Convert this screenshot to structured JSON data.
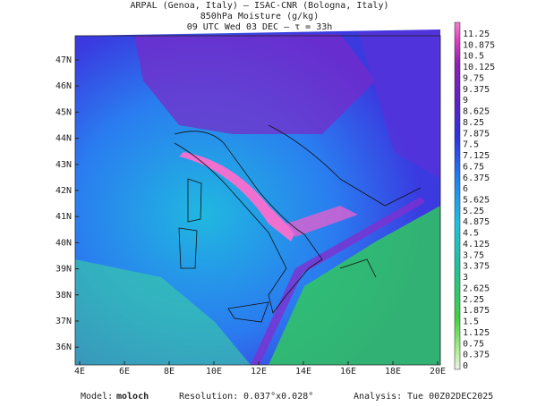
{
  "header": {
    "line1": "ARPAL (Genoa, Italy)  –  ISAC-CNR (Bologna, Italy)",
    "line2": "850hPa Moisture (g/kg)",
    "line3": "09 UTC Wed 03 DEC  –  τ = 33h"
  },
  "map": {
    "lat_labels": [
      "47N",
      "46N",
      "45N",
      "44N",
      "43N",
      "42N",
      "41N",
      "40N",
      "39N",
      "38N",
      "37N",
      "36N"
    ],
    "lon_labels": [
      "4E",
      "6E",
      "8E",
      "10E",
      "12E",
      "14E",
      "16E",
      "18E",
      "20E"
    ]
  },
  "colorbar": {
    "labels": [
      "11.25",
      "10.875",
      "10.5",
      "10.125",
      "9.75",
      "9.375",
      "9",
      "8.625",
      "8.25",
      "7.875",
      "7.5",
      "7.125",
      "6.75",
      "6.375",
      "6",
      "5.625",
      "5.25",
      "4.875",
      "4.5",
      "4.125",
      "3.75",
      "3.375",
      "3",
      "2.625",
      "2.25",
      "1.875",
      "1.5",
      "1.125",
      "0.75",
      "0.375",
      "0"
    ]
  },
  "footer": {
    "model_label": "Model:",
    "model": "moloch",
    "resolution_label": "Resolution:",
    "resolution": "0.037°x0.028°",
    "analysis_label": "Analysis:",
    "analysis": "Tue 00Z02DEC2025"
  }
}
